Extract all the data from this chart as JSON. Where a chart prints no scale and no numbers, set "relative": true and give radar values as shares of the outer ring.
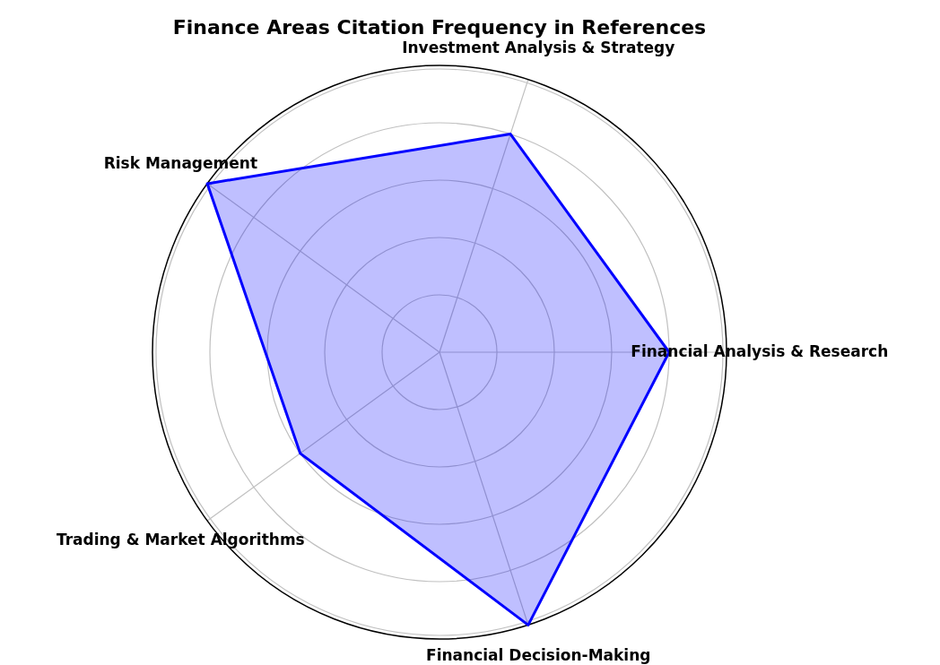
{
  "chart_data": {
    "type": "radar",
    "title": "Finance Areas Citation Frequency in References",
    "categories": [
      "Investment Analysis & Strategy",
      "Financial Analysis & Research",
      "Financial Decision-Making",
      "Trading & Market Algorithms",
      "Risk Management"
    ],
    "relative": true,
    "grid": true,
    "legend": false,
    "marker": "none",
    "line_style": "solid",
    "series": [
      {
        "color": "#0000ff",
        "values": [
          0.8,
          0.8,
          1,
          0.6,
          1
        ]
      }
    ]
  }
}
